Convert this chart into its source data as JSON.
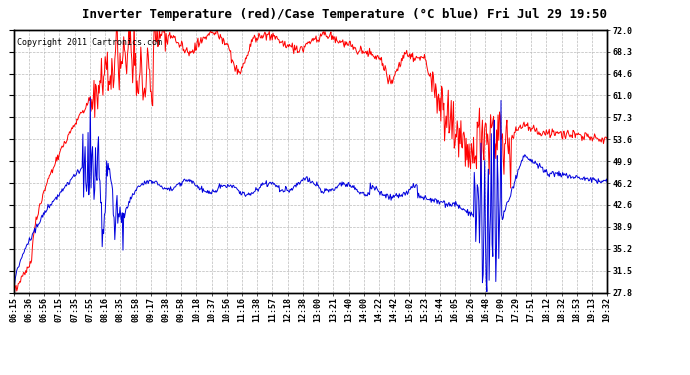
{
  "title": "Inverter Temperature (red)/Case Temperature (°C blue) Fri Jul 29 19:50",
  "copyright": "Copyright 2011 Cartronics.com",
  "ylabel_right_ticks": [
    27.8,
    31.5,
    35.2,
    38.9,
    42.6,
    46.2,
    49.9,
    53.6,
    57.3,
    61.0,
    64.6,
    68.3,
    72.0
  ],
  "ylim": [
    27.8,
    72.0
  ],
  "background_color": "#ffffff",
  "plot_bg_color": "#ffffff",
  "grid_color": "#bbbbbb",
  "red_color": "#ff0000",
  "blue_color": "#0000dd",
  "x_labels": [
    "06:15",
    "06:36",
    "06:56",
    "07:15",
    "07:35",
    "07:55",
    "08:16",
    "08:35",
    "08:58",
    "09:17",
    "09:38",
    "09:58",
    "10:18",
    "10:37",
    "10:56",
    "11:16",
    "11:38",
    "11:57",
    "12:18",
    "12:38",
    "13:00",
    "13:21",
    "13:40",
    "14:00",
    "14:22",
    "14:42",
    "15:02",
    "15:23",
    "15:44",
    "16:05",
    "16:26",
    "16:48",
    "17:09",
    "17:29",
    "17:51",
    "18:12",
    "18:32",
    "18:53",
    "19:13",
    "19:32"
  ],
  "title_fontsize": 9,
  "copyright_fontsize": 6,
  "tick_fontsize": 6,
  "linewidth": 0.7
}
